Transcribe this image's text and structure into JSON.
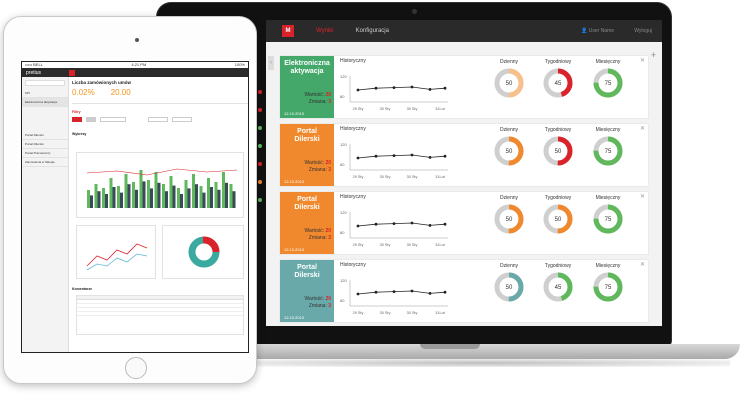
{
  "laptop": {
    "nav": {
      "logo": "M",
      "tabs": [
        {
          "label": "Wyniki",
          "active": true
        },
        {
          "label": "Konfiguracja",
          "active": false
        }
      ],
      "user": "User Name",
      "logout": "Wyloguj"
    },
    "cards": [
      {
        "title": "Elektroniczna aktywacja",
        "color": "#43a86a",
        "value_label": "Wartość:",
        "value": "20",
        "change_label": "Zmiana:",
        "change": "3",
        "date": "12.10.2013",
        "hist_title": "Historyczny",
        "hist_y": [
          "120",
          "80"
        ],
        "hist_x": [
          "29 Sty",
          "30 Sty",
          "30 Sty",
          "31Lut"
        ],
        "points": [
          100,
          103,
          104,
          105,
          101,
          103
        ],
        "donuts": [
          {
            "title": "Dzienny",
            "value": "50",
            "color": "#f7c08a"
          },
          {
            "title": "Tygodniowy",
            "value": "45",
            "color": "#d8232a"
          },
          {
            "title": "Miesięczny",
            "value": "75",
            "color": "#5fb85c"
          }
        ]
      },
      {
        "title": "Portal Dilerski",
        "color": "#f0892d",
        "value_label": "Wartość:",
        "value": "20",
        "change_label": "Zmiana:",
        "change": "3",
        "date": "12.10.2013",
        "hist_title": "Historyczny",
        "hist_y": [
          "120",
          "80"
        ],
        "hist_x": [
          "29 Sty",
          "30 Sty",
          "30 Sty",
          "31Lut"
        ],
        "points": [
          100,
          103,
          104,
          105,
          101,
          103
        ],
        "donuts": [
          {
            "title": "Dzienny",
            "value": "50",
            "color": "#f0892d"
          },
          {
            "title": "Tygodniowy",
            "value": "50",
            "color": "#d8232a"
          },
          {
            "title": "Miesięczny",
            "value": "75",
            "color": "#5fb85c"
          }
        ]
      },
      {
        "title": "Portal Dilerski",
        "color": "#f0892d",
        "value_label": "Wartość:",
        "value": "20",
        "change_label": "Zmiana:",
        "change": "3",
        "date": "12.10.2013",
        "hist_title": "Historyczny",
        "hist_y": [
          "120",
          "80"
        ],
        "hist_x": [
          "29 Sty",
          "30 Sty",
          "30 Sty",
          "31Lut"
        ],
        "points": [
          100,
          103,
          104,
          105,
          101,
          103
        ],
        "donuts": [
          {
            "title": "Dzienny",
            "value": "50",
            "color": "#f0892d"
          },
          {
            "title": "Tygodniowy",
            "value": "50",
            "color": "#f0892d"
          },
          {
            "title": "Miesięczny",
            "value": "75",
            "color": "#5fb85c"
          }
        ]
      },
      {
        "title": "Portal Dilerski",
        "color": "#6aa9a9",
        "value_label": "Wartość:",
        "value": "20",
        "change_label": "Zmiana:",
        "change": "3",
        "date": "12.10.2013",
        "hist_title": "Historyczny",
        "hist_y": [
          "120",
          "80"
        ],
        "hist_x": [
          "29 Sty",
          "30 Sty",
          "30 Sty",
          "31Lut"
        ],
        "points": [
          100,
          103,
          104,
          105,
          101,
          103
        ],
        "donuts": [
          {
            "title": "Dzienny",
            "value": "50",
            "color": "#6aa9a9"
          },
          {
            "title": "Tygodniowy",
            "value": "45",
            "color": "#5fb85c"
          },
          {
            "title": "Miesięczny",
            "value": "75",
            "color": "#5fb85c"
          }
        ]
      }
    ]
  },
  "ipad": {
    "status_left": "••••• BELL",
    "status_time": "4:21 PM",
    "status_right": "100%",
    "brand": "pretius",
    "sidebar": [
      "KPI",
      "Elektroniczna aktywacja",
      "Portal Dilerski",
      "Portal Dilerski",
      "Portal Pracowniczy",
      "Zamówienia w Sklepie"
    ],
    "page_title": "Liczba zamówionych umów",
    "metric1": "0.02%",
    "metric2": "20.00",
    "filters": "Filtry",
    "chart_title": "Wykresy",
    "comments": "Komentarze"
  }
}
